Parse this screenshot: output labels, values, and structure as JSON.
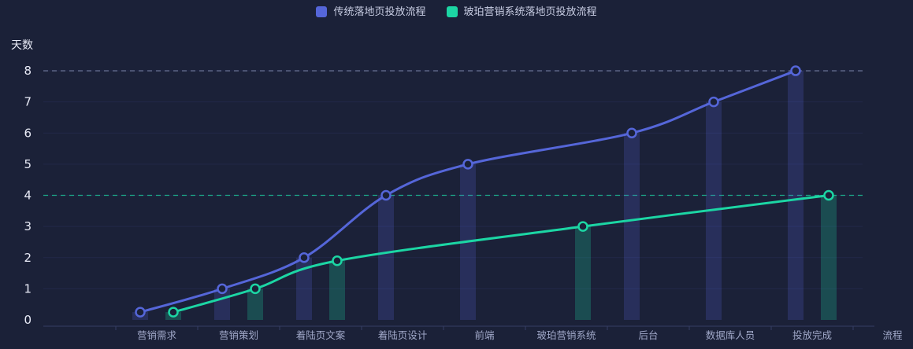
{
  "colors": {
    "background": "#1b2138",
    "grid_line": "#222849",
    "axis_line": "#343d63",
    "tick_label": "#e8eaf6",
    "category_label": "#a0a8c8"
  },
  "legend": [
    {
      "label": "传统落地页投放流程",
      "color": "#5566d9"
    },
    {
      "label": "玻珀营销系统落地页投放流程",
      "color": "#1cd6a4"
    }
  ],
  "chart_data": {
    "type": "line",
    "title": "",
    "ylabel": "天数",
    "xlabel": "",
    "x_axis_name": "流程",
    "ylim": [
      0,
      8
    ],
    "yticks": [
      0,
      1,
      2,
      3,
      4,
      5,
      6,
      7,
      8
    ],
    "grid": true,
    "legend_position": "top-center",
    "categories": [
      "营销需求",
      "营销策划",
      "着陆页文案",
      "着陆页设计",
      "前端",
      "玻珀营销系统",
      "后台",
      "数据库人员",
      "投放完成"
    ],
    "series": [
      {
        "name": "传统落地页投放流程",
        "type": "line-with-bars",
        "color": "#5566d9",
        "bar_color": "rgba(85,102,217,0.22)",
        "values": [
          0.25,
          1,
          2,
          4,
          5,
          null,
          6,
          7,
          8
        ],
        "max_markline": {
          "value": 8,
          "color": "#848eb3"
        }
      },
      {
        "name": "玻珀营销系统落地页投放流程",
        "type": "line-with-bars",
        "color": "#1cd6a4",
        "bar_color": "rgba(28,214,164,0.24)",
        "values": [
          0.25,
          1,
          1.9,
          null,
          null,
          3,
          null,
          null,
          4
        ],
        "max_markline": {
          "value": 4,
          "color": "#1cbf93"
        }
      }
    ]
  }
}
